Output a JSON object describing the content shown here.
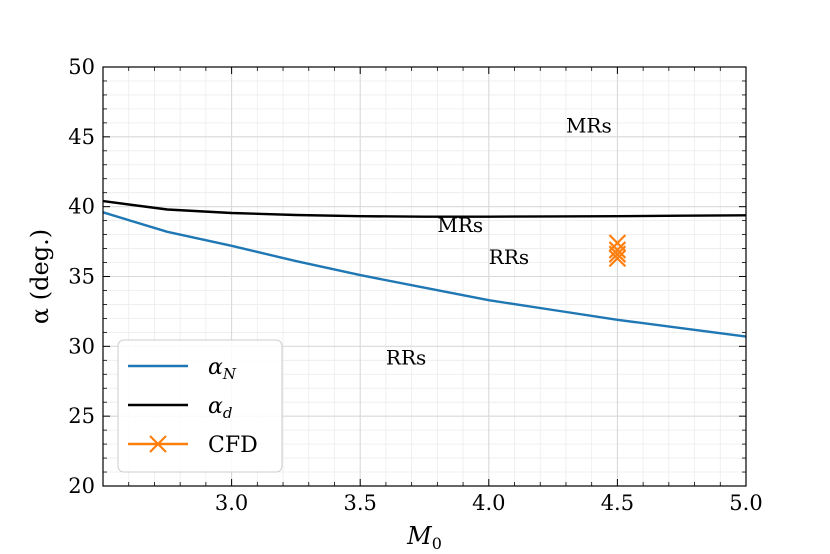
{
  "chart_data": {
    "type": "line",
    "xlabel": "M0",
    "xlabel_main": "M",
    "xlabel_sub": "0",
    "ylabel": "α (deg.)",
    "xlim": [
      2.5,
      5.0
    ],
    "ylim": [
      20,
      50
    ],
    "x_ticks": [
      3.0,
      3.5,
      4.0,
      4.5,
      5.0
    ],
    "x_tick_labels": [
      "3.0",
      "3.5",
      "4.0",
      "4.5",
      "5.0"
    ],
    "y_ticks": [
      20,
      25,
      30,
      35,
      40,
      45,
      50
    ],
    "y_tick_labels": [
      "20",
      "25",
      "30",
      "35",
      "40",
      "45",
      "50"
    ],
    "grid": true,
    "legend_position": "lower-left",
    "series": [
      {
        "name": "αN",
        "name_main": "α",
        "name_sub": "N",
        "color": "#1f77b4",
        "kind": "line",
        "x": [
          2.5,
          2.75,
          3.0,
          3.25,
          3.5,
          3.75,
          4.0,
          4.25,
          4.5,
          4.75,
          5.0
        ],
        "y": [
          39.6,
          38.2,
          37.2,
          36.1,
          35.1,
          34.2,
          33.3,
          32.6,
          31.9,
          31.3,
          30.7
        ]
      },
      {
        "name": "αd",
        "name_main": "α",
        "name_sub": "d",
        "color": "#000000",
        "kind": "line",
        "x": [
          2.5,
          2.75,
          3.0,
          3.25,
          3.5,
          3.75,
          4.0,
          4.25,
          4.5,
          4.75,
          5.0
        ],
        "y": [
          40.4,
          39.8,
          39.55,
          39.4,
          39.32,
          39.28,
          39.28,
          39.3,
          39.32,
          39.35,
          39.38
        ]
      },
      {
        "name": "CFD",
        "color": "#ff7f0e",
        "kind": "scatter",
        "marker": "x",
        "x": [
          4.5,
          4.5,
          4.5,
          4.5
        ],
        "y": [
          37.4,
          36.9,
          36.6,
          36.3
        ]
      }
    ],
    "annotations": [
      {
        "text": "MRs",
        "x": 4.3,
        "y": 45.3
      },
      {
        "text": "MRs",
        "x": 3.8,
        "y": 38.2
      },
      {
        "text": "RRs",
        "x": 4.0,
        "y": 35.9
      },
      {
        "text": "RRs",
        "x": 3.6,
        "y": 28.7
      }
    ]
  }
}
